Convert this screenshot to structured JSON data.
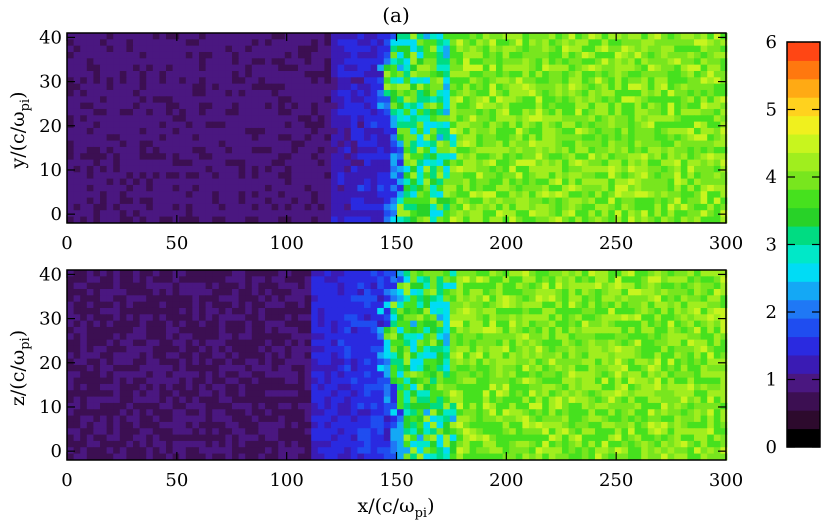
{
  "title": "(a)",
  "panels": [
    {
      "ylabel": {
        "letter": "y",
        "rest": "/(c/ω",
        "sub": "pi",
        "close": ")"
      },
      "xlabel": null
    },
    {
      "ylabel": {
        "letter": "z",
        "rest": "/(c/ω",
        "sub": "pi",
        "close": ")"
      },
      "xlabel": {
        "letter": "x",
        "rest": "/(c/ω",
        "sub": "pi",
        "close": ")"
      }
    }
  ],
  "colorbar": {
    "range": [
      0,
      6
    ],
    "tick_labels": [
      "0",
      "1",
      "2",
      "3",
      "4",
      "5",
      "6"
    ],
    "levels": [
      "#000000",
      "#2d0a2d",
      "#3c0f52",
      "#4a1780",
      "#3a1bb4",
      "#2a2ae0",
      "#1f4df0",
      "#1f78f5",
      "#14a8f5",
      "#00dcf5",
      "#00e8c8",
      "#00dc82",
      "#28d228",
      "#46e11e",
      "#78e61e",
      "#a0ee1e",
      "#c8f51e",
      "#f0f01e",
      "#ffd21e",
      "#ffaa14",
      "#ff780f",
      "#ff4614"
    ]
  },
  "chart_data": [
    {
      "type": "heatmap",
      "title": "(a)",
      "xlabel": "",
      "ylabel": "y/(c/ωpi)",
      "xlim": [
        0,
        300
      ],
      "ylim": [
        -2,
        41
      ],
      "xticks": [
        0,
        50,
        100,
        150,
        200,
        250,
        300
      ],
      "yticks": [
        0,
        10,
        20,
        30,
        40
      ],
      "shock_x": 146,
      "regions": [
        {
          "x_range": [
            0,
            120
          ],
          "value": 0.9
        },
        {
          "x_range": [
            120,
            146
          ],
          "value": 1.2
        },
        {
          "x_range": [
            146,
            175
          ],
          "value": 2.8
        },
        {
          "x_range": [
            175,
            300
          ],
          "value": 4.0
        }
      ]
    },
    {
      "type": "heatmap",
      "title": "",
      "xlabel": "x/(c/ωpi)",
      "ylabel": "z/(c/ωpi)",
      "xlim": [
        0,
        300
      ],
      "ylim": [
        -2,
        41
      ],
      "xticks": [
        0,
        50,
        100,
        150,
        200,
        250,
        300
      ],
      "yticks": [
        0,
        10,
        20,
        30,
        40
      ],
      "shock_x": 146,
      "regions": [
        {
          "x_range": [
            0,
            110
          ],
          "value": 0.8
        },
        {
          "x_range": [
            110,
            146
          ],
          "value": 1.4
        },
        {
          "x_range": [
            146,
            175
          ],
          "value": 2.8
        },
        {
          "x_range": [
            175,
            300
          ],
          "value": 4.0
        }
      ]
    }
  ]
}
